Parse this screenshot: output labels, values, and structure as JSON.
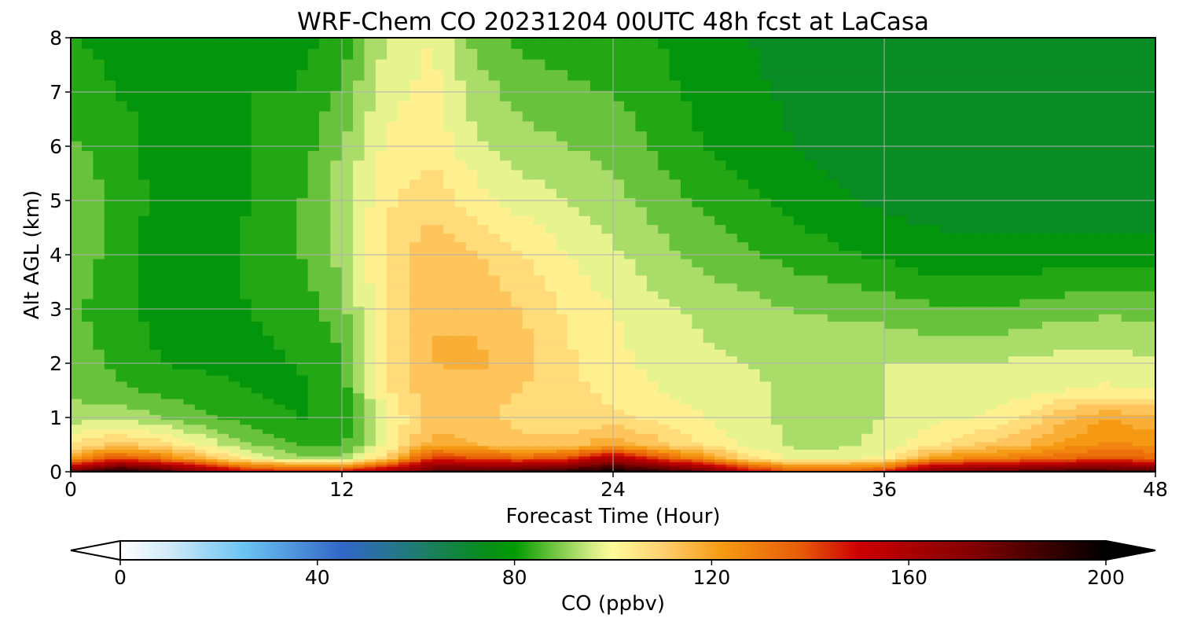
{
  "chart_data": {
    "type": "heatmap",
    "title": "WRF-Chem CO  20231204 00UTC 48h fcst at LaCasa",
    "xlabel": "Forecast Time (Hour)",
    "ylabel": "Alt AGL (km)",
    "xlim": [
      0,
      48
    ],
    "ylim": [
      0,
      8
    ],
    "x_ticks": [
      0,
      12,
      24,
      36,
      48
    ],
    "y_ticks": [
      0,
      1,
      2,
      3,
      4,
      5,
      6,
      7,
      8
    ],
    "grid": true,
    "colorbar": {
      "label": "CO  (ppbv)",
      "range": [
        0,
        200
      ],
      "ticks": [
        0,
        40,
        80,
        120,
        160,
        200
      ],
      "extend": "both",
      "orientation": "horizontal",
      "stops": [
        {
          "value": 0,
          "color": "#ffffff"
        },
        {
          "value": 10,
          "color": "#cfeaf8"
        },
        {
          "value": 25,
          "color": "#6cc4f2"
        },
        {
          "value": 45,
          "color": "#3267c8"
        },
        {
          "value": 60,
          "color": "#1f7c72"
        },
        {
          "value": 72,
          "color": "#0a8a26"
        },
        {
          "value": 80,
          "color": "#009a00"
        },
        {
          "value": 88,
          "color": "#6fc540"
        },
        {
          "value": 96,
          "color": "#d7ee88"
        },
        {
          "value": 100,
          "color": "#fffb99"
        },
        {
          "value": 110,
          "color": "#ffd070"
        },
        {
          "value": 122,
          "color": "#f69b12"
        },
        {
          "value": 138,
          "color": "#e75b08"
        },
        {
          "value": 150,
          "color": "#cc0000"
        },
        {
          "value": 175,
          "color": "#7a0000"
        },
        {
          "value": 200,
          "color": "#000000"
        }
      ]
    },
    "time_hours": [
      0,
      2,
      4,
      6,
      8,
      10,
      12,
      14,
      16,
      18,
      20,
      22,
      24,
      26,
      28,
      30,
      32,
      34,
      36,
      38,
      40,
      42,
      44,
      46,
      48
    ],
    "altitudes_km": [
      0,
      0.25,
      0.5,
      1,
      1.5,
      2,
      3,
      4,
      5,
      6,
      7,
      8
    ],
    "values_ppbv": [
      [
        180,
        200,
        190,
        170,
        150,
        150,
        150,
        165,
        185,
        185,
        190,
        195,
        200,
        195,
        180,
        155,
        140,
        140,
        145,
        175,
        180,
        185,
        190,
        190,
        185
      ],
      [
        120,
        140,
        130,
        115,
        100,
        92,
        90,
        110,
        145,
        140,
        135,
        140,
        160,
        140,
        125,
        108,
        98,
        98,
        102,
        120,
        128,
        130,
        135,
        138,
        135
      ],
      [
        105,
        112,
        108,
        98,
        90,
        85,
        84,
        100,
        118,
        115,
        112,
        112,
        120,
        112,
        105,
        98,
        94,
        94,
        96,
        104,
        110,
        114,
        122,
        126,
        124
      ],
      [
        92,
        94,
        90,
        86,
        82,
        80,
        80,
        100,
        112,
        112,
        108,
        106,
        106,
        104,
        100,
        96,
        94,
        94,
        95,
        98,
        100,
        104,
        114,
        120,
        116
      ],
      [
        89,
        86,
        84,
        82,
        80,
        79,
        82,
        104,
        114,
        112,
        110,
        106,
        104,
        100,
        98,
        96,
        94,
        94,
        95,
        96,
        97,
        98,
        100,
        101,
        100
      ],
      [
        88,
        84,
        80,
        79,
        79,
        80,
        84,
        106,
        115,
        116,
        112,
        106,
        102,
        98,
        96,
        95,
        94,
        94,
        95,
        95,
        95,
        96,
        97,
        97,
        96
      ],
      [
        86,
        82,
        78,
        79,
        80,
        82,
        88,
        106,
        115,
        114,
        110,
        104,
        100,
        96,
        94,
        92,
        90,
        89,
        88,
        86,
        85,
        86,
        88,
        89,
        88
      ],
      [
        89,
        83,
        77,
        78,
        81,
        84,
        92,
        106,
        114,
        110,
        105,
        100,
        96,
        92,
        88,
        86,
        83,
        81,
        79,
        77,
        77,
        77,
        77,
        77,
        77
      ],
      [
        90,
        84,
        78,
        78,
        80,
        84,
        93,
        104,
        108,
        102,
        98,
        95,
        92,
        88,
        84,
        81,
        78,
        76,
        74,
        73,
        72,
        72,
        72,
        72,
        72
      ],
      [
        86,
        82,
        78,
        78,
        80,
        82,
        90,
        101,
        104,
        96,
        92,
        90,
        88,
        84,
        80,
        77,
        75,
        73,
        72,
        72,
        72,
        72,
        72,
        72,
        72
      ],
      [
        83,
        80,
        79,
        79,
        80,
        80,
        86,
        98,
        102,
        92,
        88,
        86,
        85,
        82,
        78,
        76,
        74,
        72,
        72,
        72,
        72,
        72,
        73,
        72,
        72
      ],
      [
        80,
        79,
        78,
        79,
        80,
        78,
        82,
        96,
        100,
        88,
        84,
        82,
        82,
        80,
        77,
        75,
        73,
        72,
        72,
        72,
        72,
        72,
        73,
        72,
        72
      ]
    ]
  }
}
